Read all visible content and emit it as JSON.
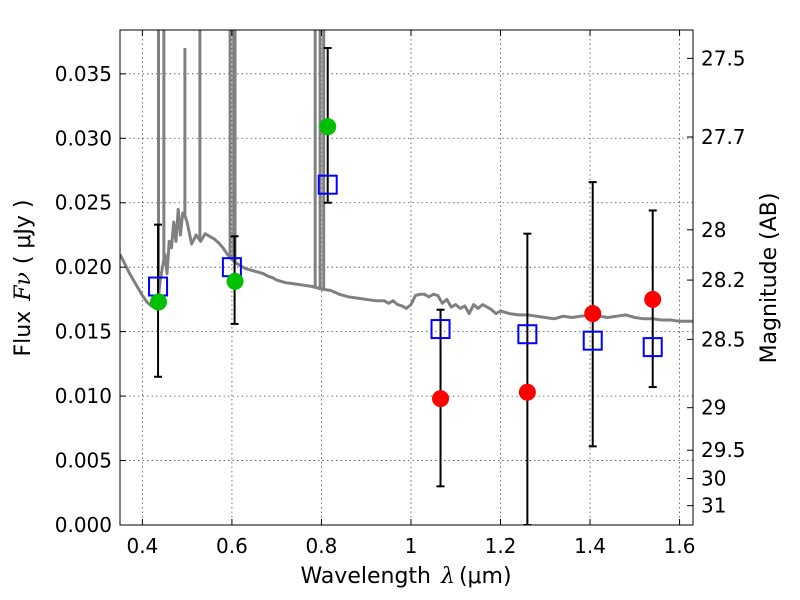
{
  "chart_data": {
    "type": "scatter",
    "title": "",
    "xlabel_text": "Wavelength",
    "xlabel_unit": "(μm)",
    "xlabel_symbol": "λ",
    "ylabel_text": "Flux",
    "ylabel_symbol": "Fν",
    "ylabel_unit": "( μJy )",
    "y2label": "Magnitude (AB)",
    "xlim": [
      0.35,
      1.63
    ],
    "ylim": [
      0.0,
      0.0384
    ],
    "grid": true,
    "x_ticks": [
      {
        "value": 0.4,
        "label": "0.4"
      },
      {
        "value": 0.6,
        "label": "0.6"
      },
      {
        "value": 0.8,
        "label": "0.8"
      },
      {
        "value": 1.0,
        "label": "1"
      },
      {
        "value": 1.2,
        "label": "1.2"
      },
      {
        "value": 1.4,
        "label": "1.4"
      },
      {
        "value": 1.6,
        "label": "1.6"
      }
    ],
    "y_ticks": [
      {
        "value": 0.0,
        "label": "0.000"
      },
      {
        "value": 0.005,
        "label": "0.005"
      },
      {
        "value": 0.01,
        "label": "0.010"
      },
      {
        "value": 0.015,
        "label": "0.015"
      },
      {
        "value": 0.02,
        "label": "0.020"
      },
      {
        "value": 0.025,
        "label": "0.025"
      },
      {
        "value": 0.03,
        "label": "0.030"
      },
      {
        "value": 0.035,
        "label": "0.035"
      }
    ],
    "y2_ticks": [
      {
        "label": "27.5",
        "flux": 0.0362
      },
      {
        "label": "27.7",
        "flux": 0.0301
      },
      {
        "label": "28",
        "flux": 0.0229
      },
      {
        "label": "28.2",
        "flux": 0.019
      },
      {
        "label": "28.5",
        "flux": 0.0144
      },
      {
        "label": "29",
        "flux": 0.0091
      },
      {
        "label": "29.5",
        "flux": 0.0058
      },
      {
        "label": "30",
        "flux": 0.0036
      },
      {
        "label": "31",
        "flux": 0.0015
      }
    ],
    "series": [
      {
        "name": "model-sed",
        "kind": "line",
        "color": "#808080",
        "x": [
          0.35,
          0.36,
          0.37,
          0.38,
          0.39,
          0.4,
          0.41,
          0.42,
          0.43,
          0.435,
          0.44,
          0.445,
          0.45,
          0.455,
          0.46,
          0.465,
          0.47,
          0.475,
          0.48,
          0.485,
          0.49,
          0.495,
          0.5,
          0.51,
          0.52,
          0.53,
          0.54,
          0.55,
          0.56,
          0.57,
          0.58,
          0.59,
          0.6,
          0.61,
          0.62,
          0.63,
          0.64,
          0.65,
          0.66,
          0.67,
          0.68,
          0.69,
          0.7,
          0.72,
          0.74,
          0.76,
          0.78,
          0.8,
          0.82,
          0.84,
          0.86,
          0.88,
          0.9,
          0.92,
          0.94,
          0.95,
          0.96,
          0.97,
          0.98,
          0.99,
          1.0,
          1.01,
          1.02,
          1.03,
          1.04,
          1.05,
          1.06,
          1.07,
          1.08,
          1.09,
          1.1,
          1.11,
          1.12,
          1.13,
          1.14,
          1.15,
          1.16,
          1.17,
          1.18,
          1.19,
          1.2,
          1.22,
          1.24,
          1.26,
          1.28,
          1.3,
          1.32,
          1.34,
          1.36,
          1.38,
          1.4,
          1.42,
          1.44,
          1.46,
          1.48,
          1.5,
          1.52,
          1.54,
          1.56,
          1.58,
          1.6,
          1.63
        ],
        "y": [
          0.021,
          0.0203,
          0.0196,
          0.019,
          0.0184,
          0.0178,
          0.0173,
          0.017,
          0.0168,
          0.0175,
          0.019,
          0.02,
          0.021,
          0.0195,
          0.022,
          0.0215,
          0.0235,
          0.022,
          0.0245,
          0.0225,
          0.0242,
          0.024,
          0.0235,
          0.0218,
          0.0225,
          0.022,
          0.0226,
          0.0224,
          0.0222,
          0.0219,
          0.0215,
          0.021,
          0.0206,
          0.0203,
          0.0201,
          0.0199,
          0.0198,
          0.0197,
          0.0196,
          0.0195,
          0.0193,
          0.0192,
          0.019,
          0.0188,
          0.0187,
          0.0186,
          0.0185,
          0.0183,
          0.0182,
          0.0179,
          0.0177,
          0.0176,
          0.0175,
          0.0174,
          0.0174,
          0.0172,
          0.0174,
          0.0171,
          0.017,
          0.0168,
          0.0171,
          0.0178,
          0.0179,
          0.0179,
          0.0177,
          0.0179,
          0.0178,
          0.0172,
          0.0175,
          0.0169,
          0.0171,
          0.0168,
          0.017,
          0.0164,
          0.0171,
          0.0168,
          0.0171,
          0.0169,
          0.0167,
          0.0164,
          0.0166,
          0.0164,
          0.0163,
          0.0163,
          0.0162,
          0.0161,
          0.016,
          0.0162,
          0.0161,
          0.0162,
          0.0163,
          0.0162,
          0.0161,
          0.0162,
          0.0163,
          0.0161,
          0.016,
          0.016,
          0.0159,
          0.0159,
          0.0158,
          0.0158
        ]
      },
      {
        "name": "emission-lines",
        "kind": "spikes",
        "color": "#808080",
        "x": [
          0.436,
          0.448,
          0.495,
          0.5285,
          0.596,
          0.604,
          0.607,
          0.786,
          0.797,
          0.805
        ],
        "y_top": [
          0.0384,
          0.0384,
          0.037,
          0.0384,
          0.0384,
          0.0384,
          0.0384,
          0.0384,
          0.0384,
          0.0384
        ]
      },
      {
        "name": "observed-flux",
        "kind": "errorbar",
        "color": "#000000",
        "x": [
          0.435,
          0.606,
          0.814,
          1.066,
          1.26,
          1.406,
          1.54
        ],
        "y": [
          0.0175,
          0.019,
          0.031,
          0.0099,
          0.0104,
          0.0164,
          0.0175
        ],
        "yerr_low": [
          0.0115,
          0.0156,
          0.025,
          0.003,
          0.0,
          0.0061,
          0.0107
        ],
        "yerr_high": [
          0.0233,
          0.0224,
          0.037,
          0.0167,
          0.0226,
          0.0266,
          0.0244
        ]
      },
      {
        "name": "model-photometry",
        "kind": "square",
        "color": "#0000ff",
        "x": [
          0.435,
          0.6,
          0.814,
          1.066,
          1.26,
          1.406,
          1.54
        ],
        "y": [
          0.0185,
          0.02,
          0.0264,
          0.0152,
          0.0148,
          0.0143,
          0.0138
        ]
      },
      {
        "name": "detections",
        "kind": "circle",
        "color": "#00c000",
        "x": [
          0.436,
          0.607,
          0.814
        ],
        "y": [
          0.0173,
          0.0189,
          0.0309
        ]
      },
      {
        "name": "non-detections",
        "kind": "circle",
        "color": "#ff0000",
        "x": [
          1.066,
          1.26,
          1.406,
          1.54
        ],
        "y": [
          0.0098,
          0.0103,
          0.0164,
          0.0175
        ]
      }
    ]
  }
}
